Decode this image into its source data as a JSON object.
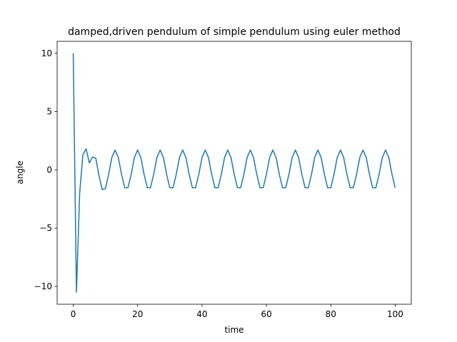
{
  "chart_data": {
    "type": "line",
    "title": "damped,driven pendulum of simple pendulum using euler method",
    "xlabel": "time",
    "ylabel": "angle",
    "x": [
      0,
      1,
      2,
      3,
      4,
      5,
      6,
      7,
      8,
      9,
      10,
      11,
      12,
      13,
      14,
      15,
      16,
      17,
      18,
      19,
      20,
      21,
      22,
      23,
      24,
      25,
      26,
      27,
      28,
      29,
      30,
      31,
      32,
      33,
      34,
      35,
      36,
      37,
      38,
      39,
      40,
      41,
      42,
      43,
      44,
      45,
      46,
      47,
      48,
      49,
      50,
      51,
      52,
      53,
      54,
      55,
      56,
      57,
      58,
      59,
      60,
      61,
      62,
      63,
      64,
      65,
      66,
      67,
      68,
      69,
      70,
      71,
      72,
      73,
      74,
      75,
      76,
      77,
      78,
      79,
      80,
      81,
      82,
      83,
      84,
      85,
      86,
      87,
      88,
      89,
      90,
      91,
      92,
      93,
      94,
      95,
      96,
      97,
      98,
      99,
      100
    ],
    "series": [
      {
        "color": "#1f77b4",
        "values": [
          10,
          -10.5,
          -2,
          1.3,
          1.8,
          0.6,
          1.1,
          1.0,
          -0.5,
          -1.7,
          -1.6,
          -0.38,
          1.06,
          1.7,
          1.06,
          -0.38,
          -1.53,
          -1.53,
          -0.38,
          1.06,
          1.7,
          1.06,
          -0.38,
          -1.53,
          -1.53,
          -0.38,
          1.06,
          1.7,
          1.06,
          -0.38,
          -1.53,
          -1.53,
          -0.38,
          1.06,
          1.7,
          1.06,
          -0.38,
          -1.53,
          -1.53,
          -0.38,
          1.06,
          1.7,
          1.06,
          -0.38,
          -1.53,
          -1.53,
          -0.38,
          1.06,
          1.7,
          1.06,
          -0.38,
          -1.53,
          -1.53,
          -0.38,
          1.06,
          1.7,
          1.06,
          -0.38,
          -1.53,
          -1.53,
          -0.38,
          1.06,
          1.7,
          1.06,
          -0.38,
          -1.53,
          -1.53,
          -0.38,
          1.06,
          1.7,
          1.06,
          -0.38,
          -1.53,
          -1.53,
          -0.38,
          1.06,
          1.7,
          1.06,
          -0.38,
          -1.53,
          -1.53,
          -0.38,
          1.06,
          1.7,
          1.06,
          -0.38,
          -1.53,
          -1.53,
          -0.38,
          1.06,
          1.7,
          1.06,
          -0.38,
          -1.53,
          -1.53,
          -0.38,
          1.06,
          1.7,
          1.06,
          -0.38,
          -1.53
        ]
      }
    ],
    "xlim": [
      -5,
      105
    ],
    "ylim": [
      -11.525,
      11.025
    ],
    "xticks": [
      0,
      20,
      40,
      60,
      80,
      100
    ],
    "yticks": [
      {
        "value": -10,
        "label": "−10"
      },
      {
        "value": -5,
        "label": "−5"
      },
      0,
      5,
      10
    ],
    "grid": false
  }
}
